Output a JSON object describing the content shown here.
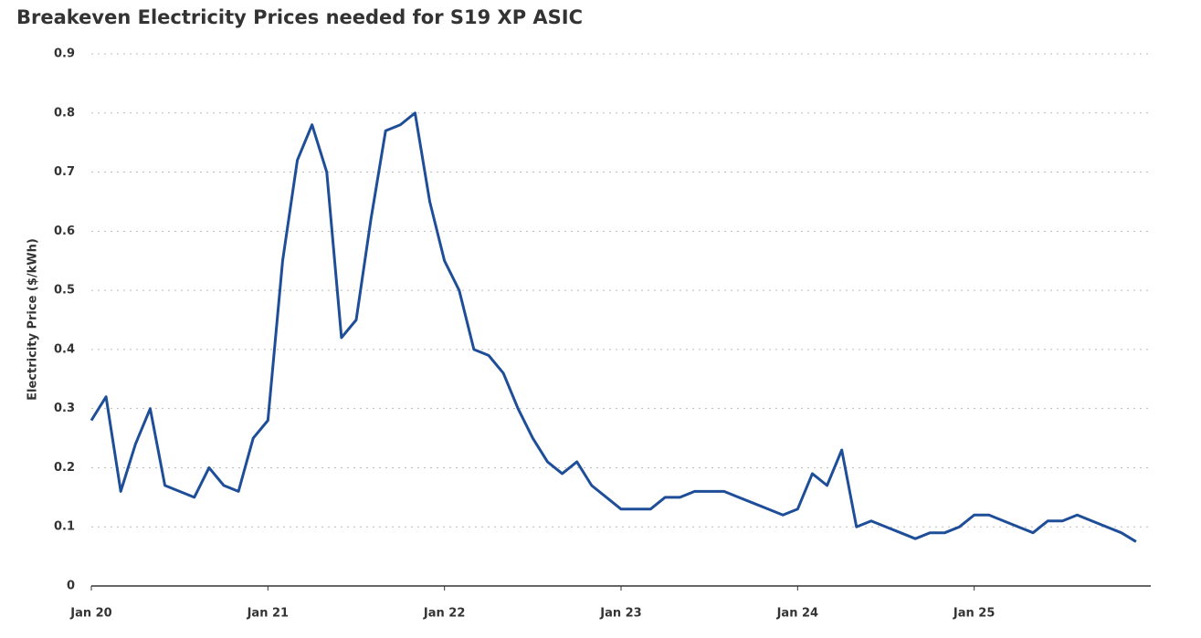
{
  "chart_data": {
    "type": "line",
    "title": "Breakeven Electricity Prices needed for S19 XP ASIC",
    "y_label": "Electricity Price ($/kWh)",
    "x": [
      "2020-01",
      "2020-02",
      "2020-03",
      "2020-04",
      "2020-05",
      "2020-06",
      "2020-07",
      "2020-08",
      "2020-09",
      "2020-10",
      "2020-11",
      "2020-12",
      "2021-01",
      "2021-02",
      "2021-03",
      "2021-04",
      "2021-05",
      "2021-06",
      "2021-07",
      "2021-08",
      "2021-09",
      "2021-10",
      "2021-11",
      "2021-12",
      "2022-01",
      "2022-02",
      "2022-03",
      "2022-04",
      "2022-05",
      "2022-06",
      "2022-07",
      "2022-08",
      "2022-09",
      "2022-10",
      "2022-11",
      "2022-12",
      "2023-01",
      "2023-02",
      "2023-03",
      "2023-04",
      "2023-05",
      "2023-06",
      "2023-07",
      "2023-08",
      "2023-09",
      "2023-10",
      "2023-11",
      "2023-12",
      "2024-01",
      "2024-02",
      "2024-03",
      "2024-04",
      "2024-05",
      "2024-06",
      "2024-07",
      "2024-08",
      "2024-09",
      "2024-10",
      "2024-11",
      "2024-12",
      "2025-01",
      "2025-02",
      "2025-03",
      "2025-04",
      "2025-05",
      "2025-06",
      "2025-07",
      "2025-08",
      "2025-09",
      "2025-10",
      "2025-11",
      "2025-12"
    ],
    "series": [
      {
        "name": "Breakeven electricity price",
        "color": "#1f4e99",
        "values": [
          0.28,
          0.32,
          0.16,
          0.24,
          0.3,
          0.17,
          0.16,
          0.15,
          0.2,
          0.17,
          0.16,
          0.25,
          0.28,
          0.55,
          0.72,
          0.78,
          0.7,
          0.42,
          0.45,
          0.62,
          0.77,
          0.78,
          0.8,
          0.65,
          0.55,
          0.5,
          0.4,
          0.39,
          0.36,
          0.3,
          0.25,
          0.21,
          0.19,
          0.21,
          0.17,
          0.15,
          0.13,
          0.13,
          0.13,
          0.15,
          0.15,
          0.16,
          0.16,
          0.16,
          0.15,
          0.14,
          0.13,
          0.12,
          0.13,
          0.19,
          0.17,
          0.23,
          0.1,
          0.11,
          0.1,
          0.09,
          0.08,
          0.09,
          0.09,
          0.1,
          0.12,
          0.12,
          0.11,
          0.1,
          0.09,
          0.11,
          0.11,
          0.12,
          0.11,
          0.1,
          0.09,
          0.075
        ]
      }
    ],
    "xlim": [
      "2020-01",
      "2026-01"
    ],
    "xticks": [
      {
        "value": "2020-01",
        "label": "Jan 20"
      },
      {
        "value": "2021-01",
        "label": "Jan 21"
      },
      {
        "value": "2022-01",
        "label": "Jan 22"
      },
      {
        "value": "2023-01",
        "label": "Jan 23"
      },
      {
        "value": "2024-01",
        "label": "Jan 24"
      },
      {
        "value": "2025-01",
        "label": "Jan 25"
      }
    ],
    "ylim": [
      0,
      0.9
    ],
    "yticks": [
      0,
      0.1,
      0.2,
      0.3,
      0.4,
      0.5,
      0.6,
      0.7,
      0.8,
      0.9
    ],
    "grid": true
  }
}
